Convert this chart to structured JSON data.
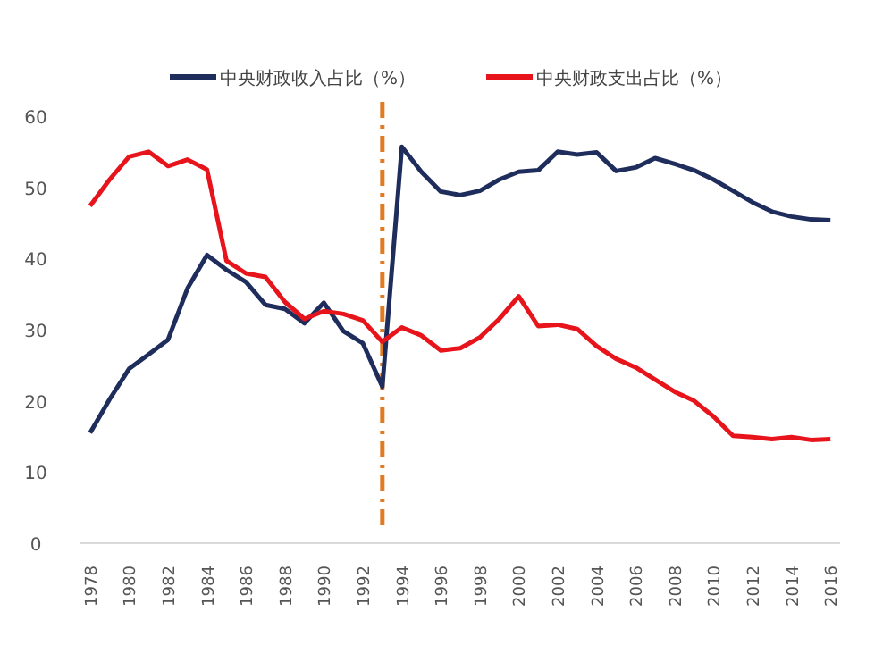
{
  "chart_data": {
    "type": "line",
    "x": [
      1978,
      1979,
      1980,
      1981,
      1982,
      1983,
      1984,
      1985,
      1986,
      1987,
      1988,
      1989,
      1990,
      1991,
      1992,
      1993,
      1994,
      1995,
      1996,
      1997,
      1998,
      1999,
      2000,
      2001,
      2002,
      2003,
      2004,
      2005,
      2006,
      2007,
      2008,
      2009,
      2010,
      2011,
      2012,
      2013,
      2014,
      2015,
      2016
    ],
    "series": [
      {
        "name": "中央财政收入占比（%）",
        "color": "#1f2d5c",
        "values": [
          15.5,
          20.2,
          24.5,
          26.5,
          28.6,
          35.8,
          40.5,
          38.4,
          36.7,
          33.5,
          32.9,
          30.9,
          33.8,
          29.8,
          28.1,
          22.0,
          55.7,
          52.2,
          49.4,
          48.9,
          49.5,
          51.1,
          52.2,
          52.4,
          55.0,
          54.6,
          54.9,
          52.3,
          52.8,
          54.1,
          53.3,
          52.4,
          51.1,
          49.5,
          47.9,
          46.6,
          45.9,
          45.5,
          45.4
        ]
      },
      {
        "name": "中央财政支出占比（%）",
        "color": "#e8141c",
        "values": [
          47.4,
          51.1,
          54.3,
          55.0,
          53.0,
          53.9,
          52.5,
          39.7,
          37.9,
          37.4,
          33.9,
          31.5,
          32.6,
          32.2,
          31.3,
          28.3,
          30.3,
          29.2,
          27.1,
          27.4,
          28.9,
          31.5,
          34.7,
          30.5,
          30.7,
          30.1,
          27.7,
          25.9,
          24.7,
          23.0,
          21.3,
          20.0,
          17.8,
          15.1,
          14.9,
          14.6,
          14.9,
          14.5,
          14.6
        ]
      }
    ],
    "xlim": [
      1977.5,
      2016.5
    ],
    "xticks": [
      1978,
      1980,
      1982,
      1984,
      1986,
      1988,
      1990,
      1992,
      1994,
      1996,
      1998,
      2000,
      2002,
      2004,
      2006,
      2008,
      2010,
      2012,
      2014,
      2016
    ],
    "ylim": [
      0,
      60
    ],
    "yticks": [
      0,
      10,
      20,
      30,
      40,
      50,
      60
    ],
    "ref_lines": [
      {
        "axis": "x",
        "value": 1993,
        "color": "#e07b24",
        "line_style": "dashdot"
      }
    ],
    "grid": false,
    "legend": "top",
    "marker": "none",
    "line_style": "solid"
  }
}
